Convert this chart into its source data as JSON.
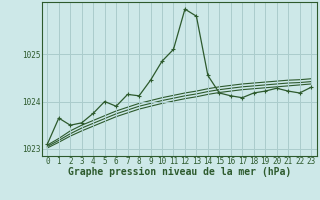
{
  "title": "Graphe pression niveau de la mer (hPa)",
  "background_color": "#cde8e8",
  "grid_color": "#aacccc",
  "line_color": "#2d5a2d",
  "x_labels": [
    "0",
    "1",
    "2",
    "3",
    "4",
    "5",
    "6",
    "7",
    "8",
    "9",
    "10",
    "11",
    "12",
    "13",
    "14",
    "15",
    "16",
    "17",
    "18",
    "19",
    "20",
    "21",
    "22",
    "23"
  ],
  "main_series": [
    1023.1,
    1023.65,
    1023.5,
    1023.55,
    1023.75,
    1024.0,
    1023.9,
    1024.15,
    1024.12,
    1024.45,
    1024.85,
    1025.1,
    1025.95,
    1025.8,
    1024.55,
    1024.18,
    1024.12,
    1024.08,
    1024.18,
    1024.22,
    1024.28,
    1024.22,
    1024.18,
    1024.3
  ],
  "trend_series_1": [
    1023.08,
    1023.22,
    1023.38,
    1023.5,
    1023.6,
    1023.7,
    1023.8,
    1023.88,
    1023.96,
    1024.02,
    1024.08,
    1024.13,
    1024.18,
    1024.22,
    1024.27,
    1024.31,
    1024.34,
    1024.37,
    1024.39,
    1024.41,
    1024.43,
    1024.45,
    1024.46,
    1024.48
  ],
  "trend_series_2": [
    1023.05,
    1023.18,
    1023.32,
    1023.44,
    1023.54,
    1023.64,
    1023.74,
    1023.82,
    1023.9,
    1023.96,
    1024.02,
    1024.07,
    1024.12,
    1024.16,
    1024.21,
    1024.25,
    1024.28,
    1024.31,
    1024.33,
    1024.35,
    1024.37,
    1024.39,
    1024.4,
    1024.42
  ],
  "trend_series_3": [
    1023.02,
    1023.14,
    1023.27,
    1023.38,
    1023.48,
    1023.58,
    1023.68,
    1023.76,
    1023.84,
    1023.9,
    1023.96,
    1024.01,
    1024.06,
    1024.1,
    1024.15,
    1024.19,
    1024.22,
    1024.25,
    1024.27,
    1024.29,
    1024.31,
    1024.33,
    1024.35,
    1024.37
  ],
  "ylim": [
    1022.85,
    1026.1
  ],
  "yticks": [
    1023,
    1024,
    1025
  ],
  "title_fontsize": 6.5,
  "tick_fontsize": 5.5,
  "label_fontsize": 7.0
}
